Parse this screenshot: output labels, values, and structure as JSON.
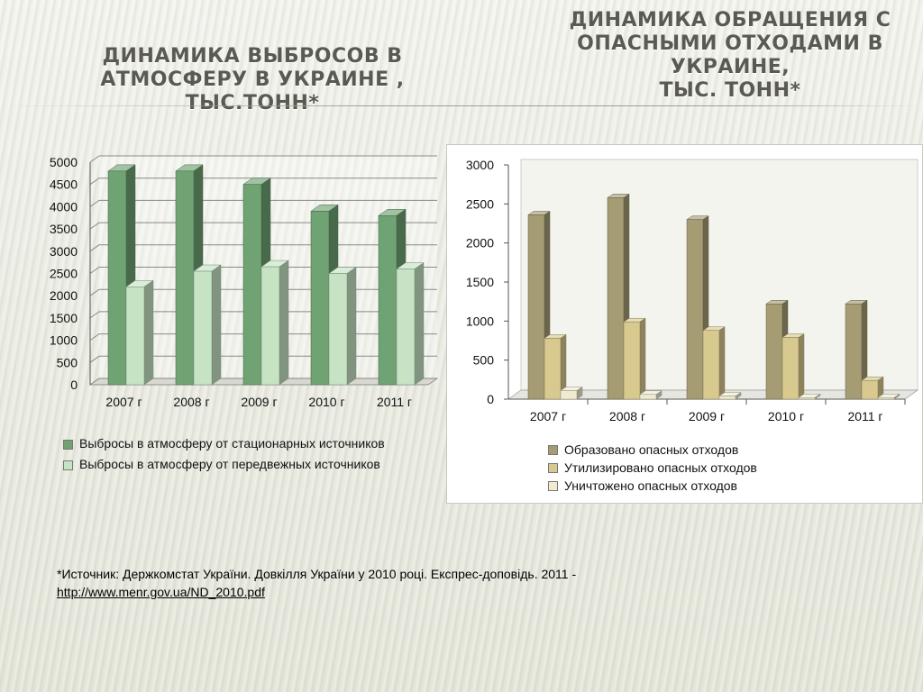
{
  "titles": {
    "left": [
      "ДИНАМИКА ВЫБРОСОВ В",
      "АТМОСФЕРУ В УКРАИНЕ ,",
      "ТЫС.ТОНН*"
    ],
    "right": [
      "ДИНАМИКА ОБРАЩЕНИЯ С",
      "ОПАСНЫМИ ОТХОДАМИ  В",
      "УКРАИНЕ,",
      "ТЫС. ТОНН*"
    ]
  },
  "legend1": [
    "Выбросы в атмосферу от стационарных источников",
    "Выбросы в атмосферу от передвежных источников"
  ],
  "legend2": [
    "Образовано опасных отходов",
    "Утилизировано опасных отходов",
    "Уничтожено опасных отходов"
  ],
  "source": {
    "text": "*Источник: Держкомстат  України. Довкілля  України у 2010 році. Експрес-доповідь. 2011 -",
    "link": "http://www.menr.gov.ua/ND_2010.pdf"
  },
  "colors": {
    "series1_stationary": "#6fa373",
    "series1_mobile": "#c6e3c4",
    "series2_formed": "#a59c74",
    "series2_utilized": "#d8c98f",
    "series2_destroyed": "#f0ebcf"
  },
  "chart_data": [
    {
      "type": "bar",
      "title": "",
      "categories": [
        "2007 г",
        "2008 г",
        "2009 г",
        "2010 г",
        "2011 г"
      ],
      "series": [
        {
          "name": "Выбросы в атмосферу от стационарных источников",
          "values": [
            4800,
            4800,
            4500,
            3900,
            3800
          ]
        },
        {
          "name": "Выбросы в атмосферу от передвежных источников",
          "values": [
            2200,
            2550,
            2650,
            2500,
            2600
          ]
        }
      ],
      "ylim": [
        0,
        5000
      ],
      "yticks": [
        0,
        500,
        1000,
        1500,
        2000,
        2500,
        3000,
        3500,
        4000,
        4500,
        5000
      ],
      "grid": true,
      "legend": "bottom"
    },
    {
      "type": "bar",
      "title": "",
      "categories": [
        "2007 г",
        "2008 г",
        "2009 г",
        "2010 г",
        "2011 г"
      ],
      "series": [
        {
          "name": "Образовано опасных отходов",
          "values": [
            2360,
            2580,
            2300,
            1220,
            1220
          ]
        },
        {
          "name": "Утилизировано опасных отходов",
          "values": [
            780,
            990,
            880,
            790,
            240
          ]
        },
        {
          "name": "Уничтожено опасных отходов",
          "values": [
            110,
            60,
            40,
            20,
            20
          ]
        }
      ],
      "ylim": [
        0,
        3000
      ],
      "yticks": [
        0,
        500,
        1000,
        1500,
        2000,
        2500,
        3000
      ],
      "grid": false,
      "legend": "bottom"
    }
  ]
}
